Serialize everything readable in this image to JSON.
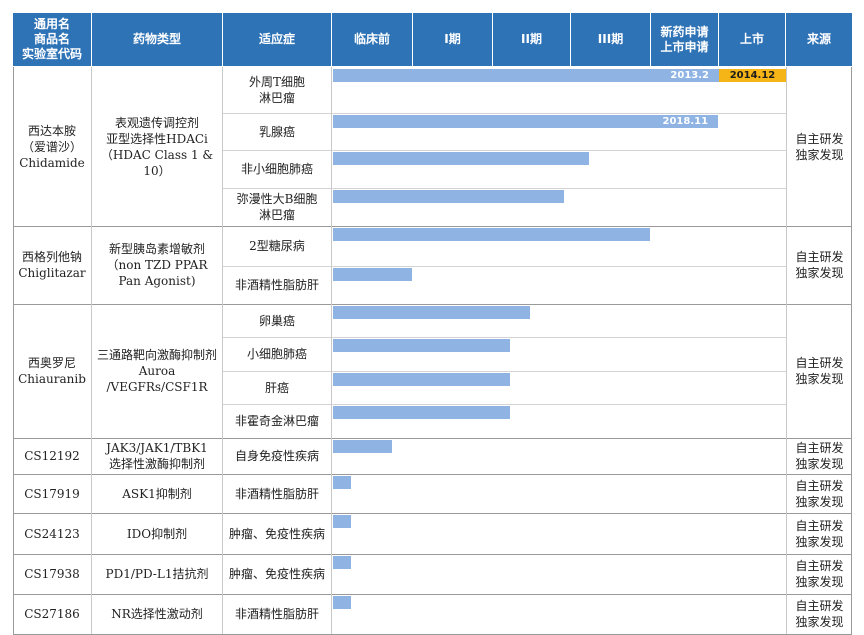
{
  "header": {
    "generic_name": [
      "通用名",
      "商品名",
      "实验室代码"
    ],
    "drug_type": "药物类型",
    "indication": "适应症",
    "preclinical": "临床前",
    "phase1": "I期",
    "phase2": "II期",
    "phase3": "III期",
    "nda": [
      "新药申请",
      "上市申请"
    ],
    "marketed": "上市",
    "source": "来源"
  },
  "drugs": [
    {
      "name_lines": [
        "西达本胺",
        "（爱谱沙）",
        "Chidamide"
      ],
      "type_lines": [
        "表观遗传调控剂",
        "亚型选择性HDACi",
        "（HDAC Class 1 & 10）"
      ],
      "source_lines": [
        "自主研发",
        "独家发现"
      ],
      "indications": [
        {
          "lines": [
            "外周T细胞",
            "淋巴瘤"
          ],
          "progress": 1.0,
          "date": "2013.2",
          "market_date": "2014.12"
        },
        {
          "lines": [
            "乳腺癌"
          ],
          "progress": 0.85,
          "date": "2018.11"
        },
        {
          "lines": [
            "非小细胞肺癌"
          ],
          "progress": 0.565
        },
        {
          "lines": [
            "弥漫性大B细胞",
            "淋巴瘤"
          ],
          "progress": 0.51
        }
      ]
    },
    {
      "name_lines": [
        "西格列他钠",
        "Chiglitazar"
      ],
      "type_lines": [
        "新型胰岛素增敏剂",
        "（non TZD PPAR",
        "Pan Agonist)"
      ],
      "source_lines": [
        "自主研发",
        "独家发现"
      ],
      "indications": [
        {
          "lines": [
            "2型糖尿病"
          ],
          "progress": 0.7
        },
        {
          "lines": [
            "非酒精性脂肪肝"
          ],
          "progress": 0.175
        }
      ]
    },
    {
      "name_lines": [
        "西奥罗尼",
        "Chiauranib"
      ],
      "type_lines": [
        "三通路靶向激酶抑制剂",
        "Auroa /VEGFRs/CSF1R"
      ],
      "source_lines": [
        "自主研发",
        "独家发现"
      ],
      "indications": [
        {
          "lines": [
            "卵巢癌"
          ],
          "progress": 0.435
        },
        {
          "lines": [
            "小细胞肺癌"
          ],
          "progress": 0.39
        },
        {
          "lines": [
            "肝癌"
          ],
          "progress": 0.39
        },
        {
          "lines": [
            "非霍奇金淋巴瘤"
          ],
          "progress": 0.39
        }
      ]
    },
    {
      "name_lines": [
        "CS12192"
      ],
      "type_lines": [
        "JAK3/JAK1/TBK1",
        "选择性激酶抑制剂"
      ],
      "source_lines": [
        "自主研发",
        "独家发现"
      ],
      "indications": [
        {
          "lines": [
            "自身免疫性疾病"
          ],
          "progress": 0.13
        }
      ]
    },
    {
      "name_lines": [
        "CS17919"
      ],
      "type_lines": [
        "ASK1抑制剂"
      ],
      "source_lines": [
        "自主研发",
        "独家发现"
      ],
      "indications": [
        {
          "lines": [
            "非酒精性脂肪肝"
          ],
          "progress": 0.04
        }
      ]
    },
    {
      "name_lines": [
        "CS24123"
      ],
      "type_lines": [
        "IDO抑制剂"
      ],
      "source_lines": [
        "自主研发",
        "独家发现"
      ],
      "indications": [
        {
          "lines": [
            "肿瘤、免疫性疾病"
          ],
          "progress": 0.04
        }
      ]
    },
    {
      "name_lines": [
        "CS17938"
      ],
      "type_lines": [
        "PD1/PD-L1拮抗剂"
      ],
      "source_lines": [
        "自主研发",
        "独家发现"
      ],
      "indications": [
        {
          "lines": [
            "肿瘤、免疫性疾病"
          ],
          "progress": 0.04
        }
      ]
    },
    {
      "name_lines": [
        "CS27186"
      ],
      "type_lines": [
        "NR选择性激动剂"
      ],
      "source_lines": [
        "自主研发",
        "独家发现"
      ],
      "indications": [
        {
          "lines": [
            "非酒精性脂肪肝"
          ],
          "progress": 0.04
        }
      ]
    }
  ]
}
